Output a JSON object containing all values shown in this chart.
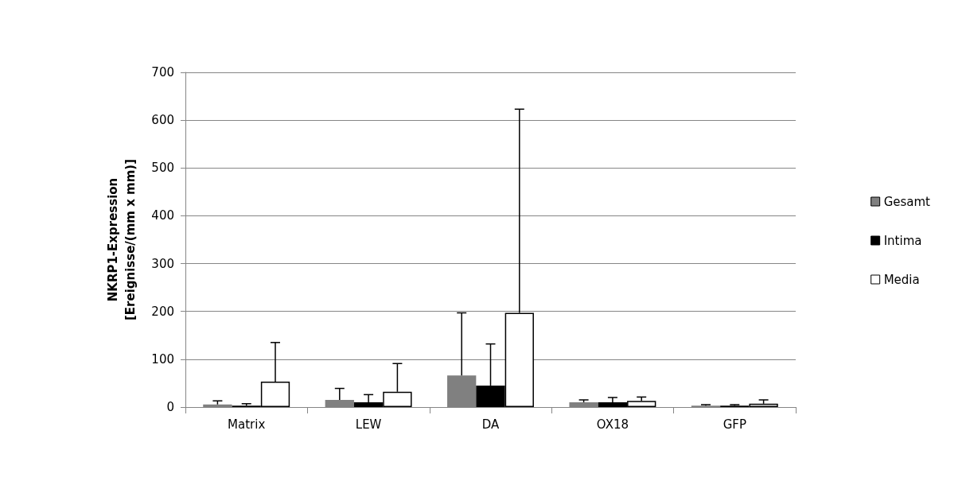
{
  "chart_data": {
    "type": "bar",
    "ylabel": "NKRP1-Expression\n[Ereignisse/(mm x mm)]",
    "categories": [
      "Matrix",
      "LEW",
      "DA",
      "OX18",
      "GFP"
    ],
    "series": [
      {
        "name": "Gesamt",
        "color": "#808080",
        "values": [
          5.5,
          15,
          66,
          10,
          3
        ],
        "errors": [
          [
            5.5,
            13
          ],
          [
            15,
            39
          ],
          [
            66,
            197
          ],
          [
            10,
            15
          ],
          [
            3,
            5
          ]
        ]
      },
      {
        "name": "Intima",
        "color": "#000000",
        "values": [
          3,
          10,
          45,
          10,
          3
        ],
        "errors": [
          [
            3,
            7
          ],
          [
            10,
            26
          ],
          [
            45,
            132
          ],
          [
            10,
            20
          ],
          [
            3,
            5
          ]
        ]
      },
      {
        "name": "Media",
        "color": "#ffffff",
        "values": [
          53,
          32,
          197,
          13,
          7
        ],
        "errors": [
          [
            53,
            135
          ],
          [
            32,
            91
          ],
          [
            197,
            623
          ],
          [
            13,
            21
          ],
          [
            7,
            15
          ]
        ]
      }
    ],
    "ylim": [
      0,
      700
    ],
    "yticks": [
      0,
      100,
      200,
      300,
      400,
      500,
      600,
      700
    ],
    "grid": "y",
    "legend": "right"
  }
}
